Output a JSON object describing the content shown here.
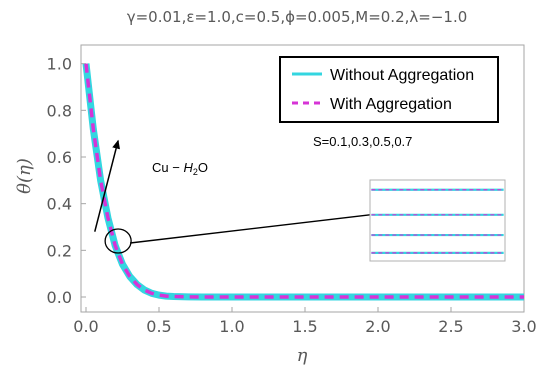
{
  "chart_data": {
    "type": "line",
    "title": "γ=0.01,ε=1.0,c=0.5,ϕ=0.005,M=0.2,λ=−1.0",
    "xlabel": "η",
    "ylabel": "θ(η)",
    "xlim": [
      0,
      3
    ],
    "ylim": [
      0,
      1.05
    ],
    "xticks": [
      "0.0",
      "0.5",
      "1.0",
      "1.5",
      "2.0",
      "2.5",
      "3.0"
    ],
    "yticks": [
      "0.0",
      "0.2",
      "0.4",
      "0.6",
      "0.8",
      "1.0"
    ],
    "xtick_values": [
      0,
      0.5,
      1.0,
      1.5,
      2.0,
      2.5,
      3.0
    ],
    "ytick_values": [
      0,
      0.2,
      0.4,
      0.6,
      0.8,
      1.0
    ],
    "legend_position": "top-right",
    "grid": false,
    "series": [
      {
        "name": "Without Aggregation",
        "color": "#33d6e0",
        "style": "solid",
        "x": [
          0,
          0.05,
          0.1,
          0.15,
          0.2,
          0.25,
          0.3,
          0.35,
          0.4,
          0.45,
          0.5,
          0.55,
          0.6,
          0.7,
          0.8,
          1.0,
          1.5,
          2.0,
          2.5,
          3.0
        ],
        "y": [
          1.0,
          0.72,
          0.5,
          0.34,
          0.22,
          0.14,
          0.088,
          0.053,
          0.03,
          0.016,
          0.008,
          0.004,
          0.002,
          0.0006,
          0.0002,
          0,
          0,
          0,
          0,
          0
        ]
      },
      {
        "name": "With Aggregation",
        "color": "#d633d6",
        "style": "dashed",
        "x": [
          0,
          0.05,
          0.1,
          0.15,
          0.2,
          0.25,
          0.3,
          0.35,
          0.4,
          0.45,
          0.5,
          0.55,
          0.6,
          0.7,
          0.8,
          1.0,
          1.5,
          2.0,
          2.5,
          3.0
        ],
        "y": [
          1.0,
          0.72,
          0.5,
          0.34,
          0.22,
          0.14,
          0.088,
          0.053,
          0.03,
          0.016,
          0.008,
          0.004,
          0.002,
          0.0006,
          0.0002,
          0,
          0,
          0,
          0,
          0
        ]
      }
    ],
    "annotations": {
      "s_values": "S=0.1,0.3,0.5,0.7",
      "fluid_prefix": "Cu − ",
      "fluid_h": "H",
      "fluid_sub": "2",
      "fluid_o": "O"
    },
    "arrow": {
      "from": [
        0.06,
        0.28
      ],
      "to": [
        0.22,
        0.67
      ]
    },
    "zoom_circle_center": [
      0.22,
      0.24
    ],
    "inset": {
      "xlim": [
        0,
        1
      ],
      "ylim": [
        0,
        1
      ],
      "levels": [
        0.88,
        0.57,
        0.32,
        0.1
      ]
    }
  }
}
